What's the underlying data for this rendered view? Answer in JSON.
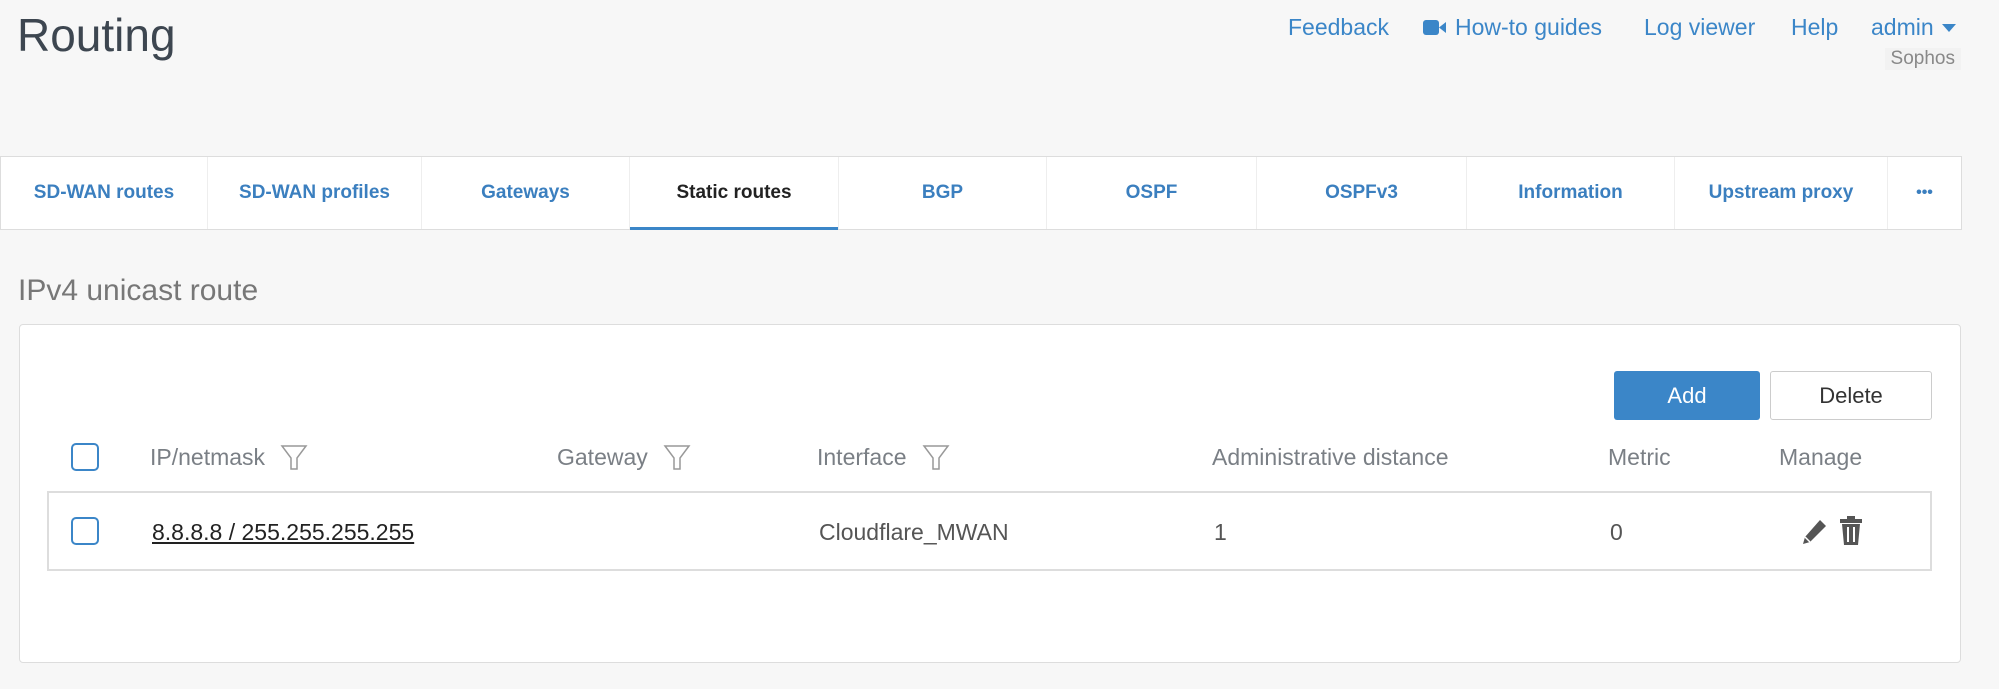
{
  "header": {
    "title": "Routing",
    "links": [
      {
        "label": "Feedback",
        "icon": ""
      },
      {
        "label": "How-to guides",
        "icon": "video-camera-icon"
      },
      {
        "label": "Log viewer"
      },
      {
        "label": "Help"
      },
      {
        "label": "admin"
      }
    ],
    "org": "Sophos"
  },
  "tabs": [
    {
      "label": "SD-WAN routes"
    },
    {
      "label": "SD-WAN profiles"
    },
    {
      "label": "Gateways"
    },
    {
      "label": "Static routes",
      "active": true
    },
    {
      "label": "BGP"
    },
    {
      "label": "OSPF"
    },
    {
      "label": "OSPFv3"
    },
    {
      "label": "Information"
    },
    {
      "label": "Upstream proxy"
    },
    {
      "label": "•••"
    }
  ],
  "section": {
    "title": "IPv4 unicast route",
    "add_label": "Add",
    "delete_label": "Delete"
  },
  "table": {
    "columns": [
      "IP/netmask",
      "Gateway",
      "Interface",
      "Administrative distance",
      "Metric",
      "Manage"
    ],
    "rows": [
      {
        "ip_netmask": "8.8.8.8 / 255.255.255.255",
        "gateway": "",
        "interface": "Cloudflare_MWAN",
        "admin_distance": "1",
        "metric": "0"
      }
    ]
  },
  "colors": {
    "accent": "#3b86c8",
    "background": "#f7f7f7"
  }
}
